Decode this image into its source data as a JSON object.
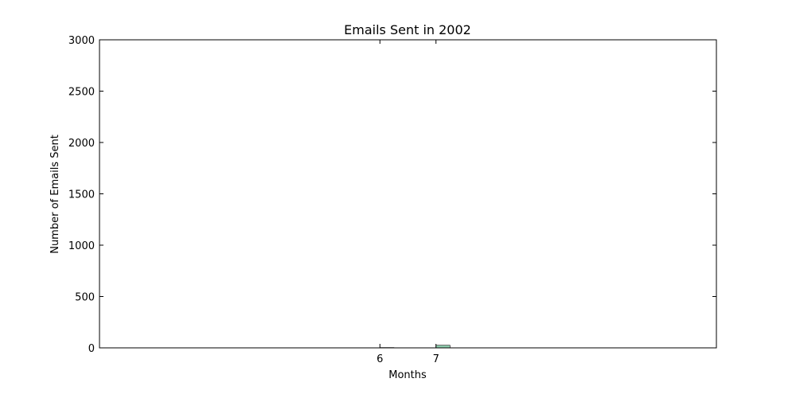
{
  "chart_data": {
    "type": "bar",
    "title": "Emails Sent in 2002",
    "xlabel": "Months",
    "ylabel": "Number of Emails Sent",
    "categories": [
      "6",
      "7"
    ],
    "x": [
      6,
      7
    ],
    "values": [
      3,
      25
    ],
    "xlim": [
      1,
      12
    ],
    "ylim": [
      0,
      3000
    ],
    "yticks": [
      0,
      500,
      1000,
      1500,
      2000,
      2500,
      3000
    ],
    "grid": false,
    "colors": {
      "bar_fill": "#8fcfb0",
      "bar_edge": "#000000"
    }
  }
}
